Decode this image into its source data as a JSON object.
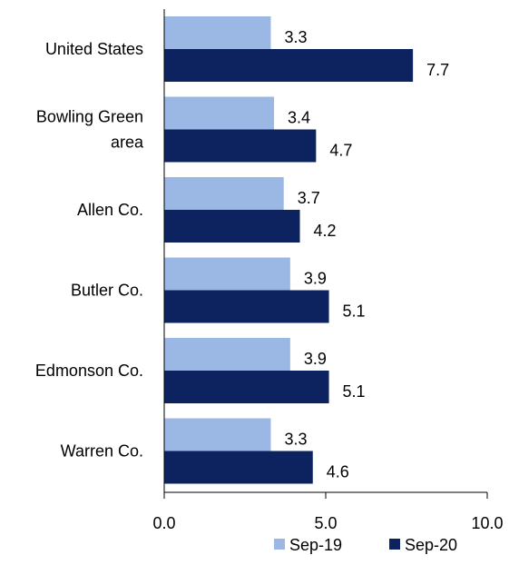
{
  "chart_data": {
    "type": "bar",
    "orientation": "horizontal",
    "categories": [
      [
        "United States"
      ],
      [
        "Bowling Green",
        "area"
      ],
      [
        "Allen Co."
      ],
      [
        "Butler Co."
      ],
      [
        "Edmonson Co."
      ],
      [
        "Warren Co."
      ]
    ],
    "series": [
      {
        "name": "Sep-19",
        "color": "#9bb7e3",
        "values": [
          3.3,
          3.4,
          3.7,
          3.9,
          3.9,
          3.3
        ]
      },
      {
        "name": "Sep-20",
        "color": "#0d2360",
        "values": [
          7.7,
          4.7,
          4.2,
          5.1,
          5.1,
          4.6
        ]
      }
    ],
    "xlim": [
      0,
      10
    ],
    "xticks": [
      "0.0",
      "5.0",
      "10.0"
    ],
    "grid": false,
    "legend_position": "bottom-right"
  }
}
